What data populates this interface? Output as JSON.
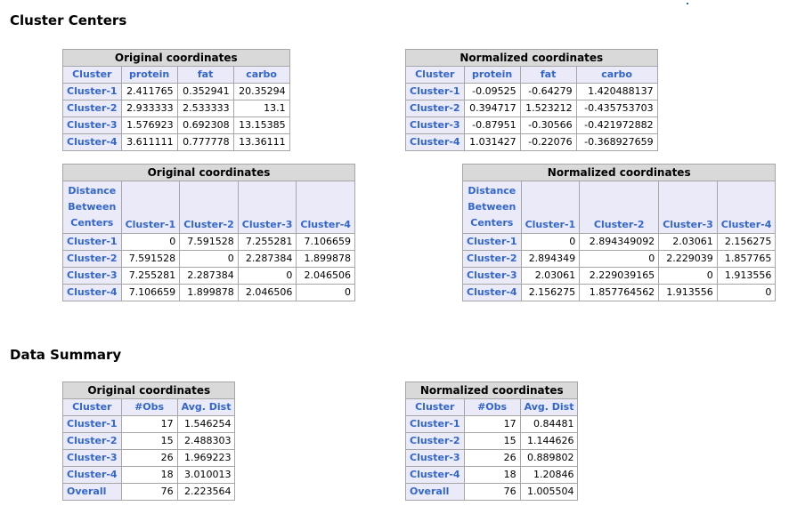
{
  "cluster_centers": {
    "title": "Cluster Centers",
    "orig_coords": {
      "caption": "Original coordinates",
      "columns": [
        "Cluster",
        "protein",
        "fat",
        "carbo"
      ],
      "rows": [
        [
          "Cluster-1",
          "2.411765",
          "0.352941",
          "20.35294"
        ],
        [
          "Cluster-2",
          "2.933333",
          "2.533333",
          "13.1"
        ],
        [
          "Cluster-3",
          "1.576923",
          "0.692308",
          "13.15385"
        ],
        [
          "Cluster-4",
          "3.611111",
          "0.777778",
          "13.36111"
        ]
      ]
    },
    "norm_coords": {
      "caption": "Normalized coordinates",
      "columns": [
        "Cluster",
        "protein",
        "fat",
        "carbo"
      ],
      "rows": [
        [
          "Cluster-1",
          "-0.09525",
          "-0.64279",
          "1.420488137"
        ],
        [
          "Cluster-2",
          "0.394717",
          "1.523212",
          "-0.435753703"
        ],
        [
          "Cluster-3",
          "-0.87951",
          "-0.30566",
          "-0.421972882"
        ],
        [
          "Cluster-4",
          "1.031427",
          "-0.22076",
          "-0.368927659"
        ]
      ]
    },
    "orig_distances": {
      "caption": "Original coordinates",
      "corner": [
        "Distance",
        "Between",
        "Centers"
      ],
      "columns": [
        "Cluster-1",
        "Cluster-2",
        "Cluster-3",
        "Cluster-4"
      ],
      "rows": [
        [
          "Cluster-1",
          "0",
          "7.591528",
          "7.255281",
          "7.106659"
        ],
        [
          "Cluster-2",
          "7.591528",
          "0",
          "2.287384",
          "1.899878"
        ],
        [
          "Cluster-3",
          "7.255281",
          "2.287384",
          "0",
          "2.046506"
        ],
        [
          "Cluster-4",
          "7.106659",
          "1.899878",
          "2.046506",
          "0"
        ]
      ]
    },
    "norm_distances": {
      "caption": "Normalized coordinates",
      "corner": [
        "Distance",
        "Between",
        "Centers"
      ],
      "columns": [
        "Cluster-1",
        "Cluster-2",
        "Cluster-3",
        "Cluster-4"
      ],
      "rows": [
        [
          "Cluster-1",
          "0",
          "2.894349092",
          "2.03061",
          "2.156275"
        ],
        [
          "Cluster-2",
          "2.894349",
          "0",
          "2.229039",
          "1.857765"
        ],
        [
          "Cluster-3",
          "2.03061",
          "2.229039165",
          "0",
          "1.913556"
        ],
        [
          "Cluster-4",
          "2.156275",
          "1.857764562",
          "1.913556",
          "0"
        ]
      ]
    }
  },
  "data_summary": {
    "title": "Data Summary",
    "orig": {
      "caption": "Original coordinates",
      "columns": [
        "Cluster",
        "#Obs",
        "Avg. Dist"
      ],
      "rows": [
        [
          "Cluster-1",
          "17",
          "1.546254"
        ],
        [
          "Cluster-2",
          "15",
          "2.488303"
        ],
        [
          "Cluster-3",
          "26",
          "1.969223"
        ],
        [
          "Cluster-4",
          "18",
          "3.010013"
        ],
        [
          "Overall",
          "76",
          "2.223564"
        ]
      ]
    },
    "norm": {
      "caption": "Normalized coordinates",
      "columns": [
        "Cluster",
        "#Obs",
        "Avg. Dist"
      ],
      "rows": [
        [
          "Cluster-1",
          "17",
          "0.84481"
        ],
        [
          "Cluster-2",
          "15",
          "1.144626"
        ],
        [
          "Cluster-3",
          "26",
          "0.889802"
        ],
        [
          "Cluster-4",
          "18",
          "1.20846"
        ],
        [
          "Overall",
          "76",
          "1.005504"
        ]
      ]
    }
  },
  "colors": {
    "header_bg": "#eaeaf8",
    "header_text": "#3366cc",
    "caption_bg": "#d9d9d9",
    "border": "#a6a6a6"
  }
}
